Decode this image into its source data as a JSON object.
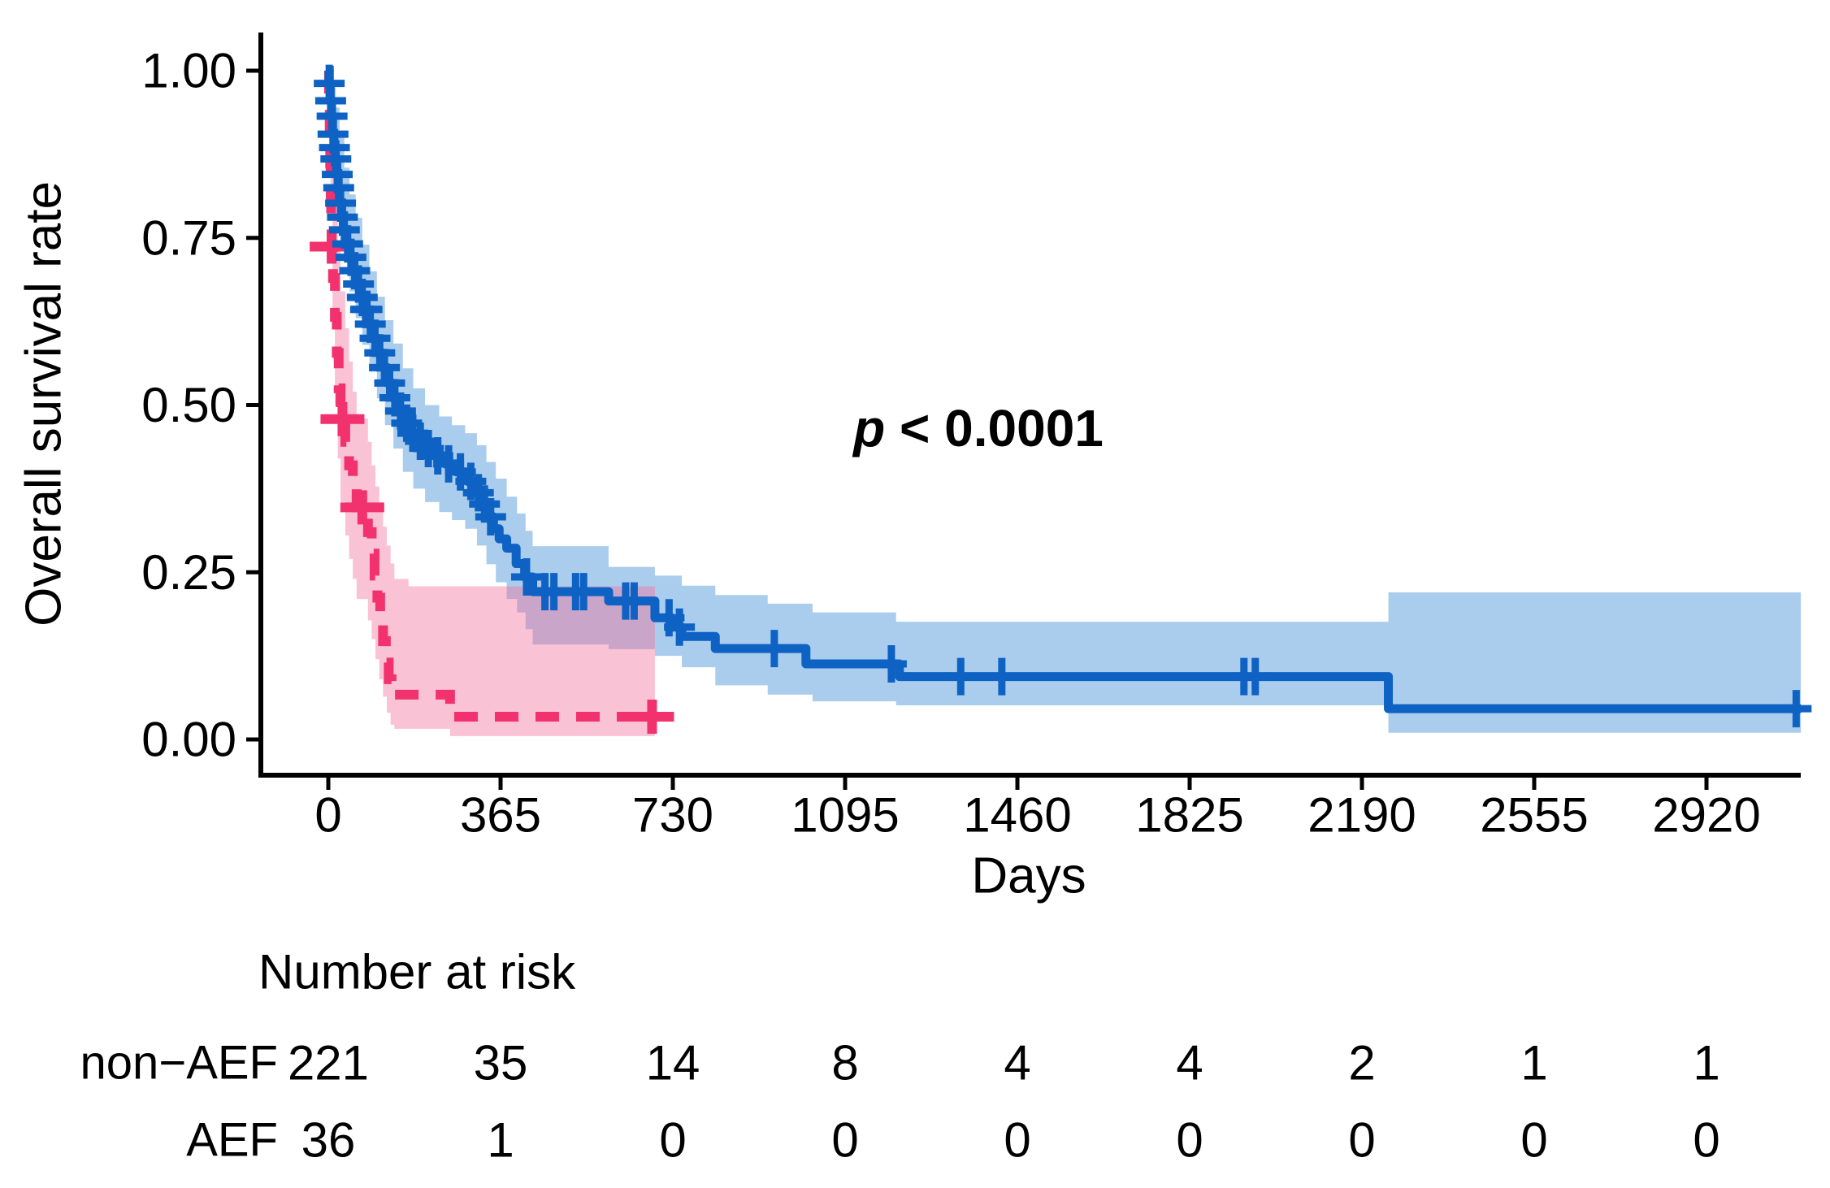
{
  "figure": {
    "ylabel": "Overall survival rate",
    "xlabel": "Days",
    "pvalue_italic": "p",
    "pvalue_rest": " < 0.0001",
    "risk_title": "Number at risk"
  },
  "colors": {
    "non_aef_line": "#0e62c4",
    "non_aef_band": "#4f97d9",
    "aef_line": "#f2326e",
    "aef_band": "#f26e9c",
    "non_aef_label": "#1b6fe0",
    "aef_label": "#f4476f",
    "axis": "#000000"
  },
  "chart_data": {
    "type": "line",
    "subtype": "kaplan-meier-step",
    "title": "",
    "xlabel": "Days",
    "ylabel": "Overall survival rate",
    "grid": false,
    "legend_position": "none",
    "pvalue": "p < 0.0001",
    "xlim": [
      -140,
      3170
    ],
    "ylim": [
      -0.05,
      1.05
    ],
    "xticks": [
      0,
      365,
      730,
      1095,
      1460,
      1825,
      2190,
      2555,
      2920
    ],
    "yticks": [
      {
        "v": 1.0,
        "label": "1.00"
      },
      {
        "v": 0.75,
        "label": "0.75"
      },
      {
        "v": 0.5,
        "label": "0.50"
      },
      {
        "v": 0.25,
        "label": "0.25"
      },
      {
        "v": 0.0,
        "label": "0.00"
      }
    ],
    "series": [
      {
        "name": "non-AEF",
        "style": "solid",
        "end_day": 3120,
        "steps": [
          [
            0,
            1.0
          ],
          [
            1.5,
            0.981
          ],
          [
            4,
            0.955
          ],
          [
            7,
            0.932
          ],
          [
            9,
            0.905
          ],
          [
            12,
            0.885
          ],
          [
            15,
            0.868
          ],
          [
            18,
            0.845
          ],
          [
            21,
            0.825
          ],
          [
            24,
            0.802
          ],
          [
            28,
            0.781
          ],
          [
            32,
            0.762
          ],
          [
            38,
            0.741
          ],
          [
            45,
            0.721
          ],
          [
            52,
            0.701
          ],
          [
            60,
            0.681
          ],
          [
            68,
            0.661
          ],
          [
            76,
            0.643
          ],
          [
            85,
            0.621
          ],
          [
            95,
            0.6
          ],
          [
            105,
            0.578
          ],
          [
            115,
            0.556
          ],
          [
            125,
            0.533
          ],
          [
            136,
            0.511
          ],
          [
            148,
            0.491
          ],
          [
            160,
            0.473
          ],
          [
            173,
            0.458
          ],
          [
            188,
            0.446
          ],
          [
            205,
            0.435
          ],
          [
            225,
            0.424
          ],
          [
            248,
            0.412
          ],
          [
            272,
            0.4
          ],
          [
            295,
            0.386
          ],
          [
            312,
            0.369
          ],
          [
            326,
            0.352
          ],
          [
            339,
            0.333
          ],
          [
            350,
            0.315
          ],
          [
            362,
            0.3
          ],
          [
            378,
            0.286
          ],
          [
            398,
            0.263
          ],
          [
            416,
            0.243
          ],
          [
            433,
            0.221
          ],
          [
            594,
            0.207
          ],
          [
            692,
            0.182
          ],
          [
            727,
            0.168
          ],
          [
            749,
            0.154
          ],
          [
            820,
            0.136
          ],
          [
            1012,
            0.113
          ],
          [
            1210,
            0.094
          ],
          [
            2246,
            0.046
          ]
        ],
        "censors": [
          [
            2,
            0.981
          ],
          [
            5,
            0.955
          ],
          [
            8,
            0.932
          ],
          [
            10,
            0.905
          ],
          [
            13,
            0.885
          ],
          [
            16,
            0.868
          ],
          [
            19,
            0.845
          ],
          [
            22,
            0.825
          ],
          [
            26,
            0.802
          ],
          [
            30,
            0.781
          ],
          [
            34,
            0.762
          ],
          [
            41,
            0.741
          ],
          [
            48,
            0.721
          ],
          [
            56,
            0.701
          ],
          [
            64,
            0.681
          ],
          [
            72,
            0.661
          ],
          [
            79,
            0.643
          ],
          [
            82,
            0.643
          ],
          [
            89,
            0.621
          ],
          [
            99,
            0.6
          ],
          [
            109,
            0.578
          ],
          [
            119,
            0.556
          ],
          [
            130,
            0.533
          ],
          [
            141,
            0.511
          ],
          [
            153,
            0.491
          ],
          [
            166,
            0.473
          ],
          [
            179,
            0.458
          ],
          [
            195,
            0.446
          ],
          [
            212,
            0.435
          ],
          [
            232,
            0.424
          ],
          [
            255,
            0.412
          ],
          [
            280,
            0.4
          ],
          [
            302,
            0.386
          ],
          [
            318,
            0.369
          ],
          [
            331,
            0.352
          ],
          [
            344,
            0.333
          ],
          [
            420,
            0.243
          ],
          [
            459,
            0.221
          ],
          [
            478,
            0.221
          ],
          [
            524,
            0.221
          ],
          [
            541,
            0.221
          ],
          [
            630,
            0.207
          ],
          [
            648,
            0.207
          ],
          [
            722,
            0.182
          ],
          [
            744,
            0.168
          ],
          [
            945,
            0.136
          ],
          [
            1193,
            0.113
          ],
          [
            1340,
            0.094
          ],
          [
            1427,
            0.094
          ],
          [
            1940,
            0.094
          ],
          [
            1964,
            0.094
          ],
          [
            3110,
            0.046
          ]
        ],
        "band": [
          [
            0,
            0.965,
            1.0
          ],
          [
            8,
            0.9,
            0.975
          ],
          [
            16,
            0.845,
            0.945
          ],
          [
            24,
            0.77,
            0.9
          ],
          [
            34,
            0.72,
            0.855
          ],
          [
            45,
            0.67,
            0.815
          ],
          [
            58,
            0.63,
            0.78
          ],
          [
            72,
            0.59,
            0.74
          ],
          [
            87,
            0.55,
            0.7
          ],
          [
            103,
            0.51,
            0.662
          ],
          [
            120,
            0.47,
            0.627
          ],
          [
            138,
            0.435,
            0.592
          ],
          [
            158,
            0.4,
            0.555
          ],
          [
            180,
            0.375,
            0.525
          ],
          [
            205,
            0.355,
            0.5
          ],
          [
            235,
            0.34,
            0.483
          ],
          [
            262,
            0.328,
            0.47
          ],
          [
            290,
            0.315,
            0.458
          ],
          [
            315,
            0.29,
            0.44
          ],
          [
            335,
            0.262,
            0.415
          ],
          [
            355,
            0.235,
            0.39
          ],
          [
            378,
            0.21,
            0.363
          ],
          [
            400,
            0.19,
            0.338
          ],
          [
            418,
            0.165,
            0.312
          ],
          [
            433,
            0.142,
            0.289
          ],
          [
            594,
            0.135,
            0.258
          ],
          [
            692,
            0.125,
            0.245
          ],
          [
            749,
            0.108,
            0.23
          ],
          [
            820,
            0.081,
            0.216
          ],
          [
            931,
            0.067,
            0.203
          ],
          [
            1026,
            0.057,
            0.19
          ],
          [
            1203,
            0.051,
            0.176
          ],
          [
            2246,
            0.01,
            0.22
          ]
        ],
        "band_end_day": 3120
      },
      {
        "name": "AEF",
        "style": "dashed",
        "end_day": 700,
        "steps": [
          [
            0,
            1.0
          ],
          [
            1.5,
            0.95
          ],
          [
            3,
            0.905
          ],
          [
            4,
            0.861
          ],
          [
            5,
            0.815
          ],
          [
            6,
            0.775
          ],
          [
            7,
            0.737
          ],
          [
            10,
            0.69
          ],
          [
            14,
            0.632
          ],
          [
            18,
            0.578
          ],
          [
            22,
            0.525
          ],
          [
            26,
            0.479
          ],
          [
            36,
            0.445
          ],
          [
            44,
            0.41
          ],
          [
            52,
            0.379
          ],
          [
            60,
            0.347
          ],
          [
            84,
            0.31
          ],
          [
            92,
            0.278
          ],
          [
            98,
            0.245
          ],
          [
            104,
            0.212
          ],
          [
            110,
            0.18
          ],
          [
            116,
            0.147
          ],
          [
            122,
            0.115
          ],
          [
            128,
            0.09
          ],
          [
            134,
            0.067
          ],
          [
            258,
            0.034
          ]
        ],
        "censors": [
          [
            7,
            0.737
          ],
          [
            30,
            0.479
          ],
          [
            72,
            0.347
          ],
          [
            686,
            0.034
          ]
        ],
        "band": [
          [
            0,
            0.93,
            1.0
          ],
          [
            5,
            0.8,
            0.97
          ],
          [
            9,
            0.62,
            0.9
          ],
          [
            14,
            0.5,
            0.82
          ],
          [
            20,
            0.42,
            0.74
          ],
          [
            26,
            0.355,
            0.67
          ],
          [
            36,
            0.305,
            0.615
          ],
          [
            44,
            0.27,
            0.565
          ],
          [
            52,
            0.24,
            0.52
          ],
          [
            60,
            0.21,
            0.48
          ],
          [
            84,
            0.178,
            0.445
          ],
          [
            92,
            0.15,
            0.41
          ],
          [
            100,
            0.12,
            0.378
          ],
          [
            108,
            0.09,
            0.348
          ],
          [
            116,
            0.064,
            0.318
          ],
          [
            124,
            0.04,
            0.29
          ],
          [
            132,
            0.022,
            0.263
          ],
          [
            140,
            0.016,
            0.24
          ],
          [
            170,
            0.016,
            0.229
          ],
          [
            258,
            0.005,
            0.229
          ]
        ],
        "band_end_day": 692
      }
    ],
    "risk_table": {
      "title": "Number at risk",
      "times": [
        0,
        365,
        730,
        1095,
        1460,
        1825,
        2190,
        2555,
        2920
      ],
      "rows": [
        {
          "label": "non−AEF",
          "group": "non-AEF",
          "counts": [
            221,
            35,
            14,
            8,
            4,
            4,
            2,
            1,
            1
          ]
        },
        {
          "label": "AEF",
          "group": "AEF",
          "counts": [
            36,
            1,
            0,
            0,
            0,
            0,
            0,
            0,
            0
          ]
        }
      ]
    }
  }
}
